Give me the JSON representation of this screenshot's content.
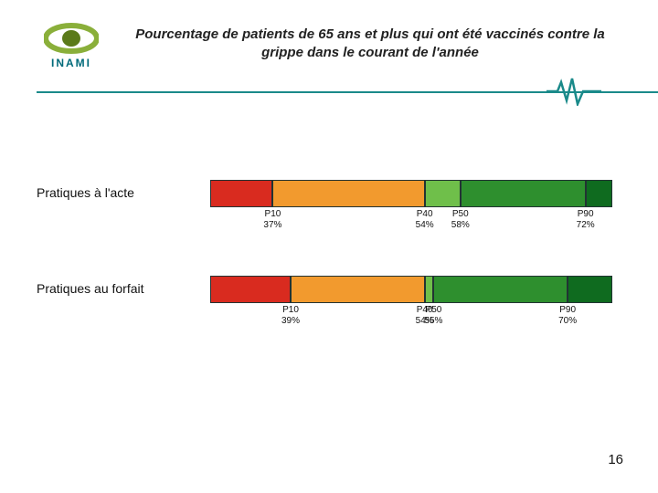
{
  "header": {
    "title": "Pourcentage de patients de 65 ans et plus qui ont été vaccinés contre la grippe dans le courant de l'année",
    "title_fontsize": 15,
    "logo_text": "INAMI",
    "logo_color_outer": "#8aaf3a",
    "logo_color_inner": "#5b7a1a",
    "logo_text_color": "#006a7a",
    "rule_color": "#1a8a8a"
  },
  "scale": {
    "min": 30,
    "max": 75
  },
  "segment_colors": {
    "red": "#d92b1f",
    "orange": "#f29a2e",
    "lightgreen": "#6fbf4a",
    "green": "#2e8f2e",
    "darkgreen": "#0f6b1f"
  },
  "rows": [
    {
      "label": "Pratiques à l'acte",
      "segments": [
        {
          "from": 30,
          "to": 37,
          "color": "red"
        },
        {
          "from": 37,
          "to": 54,
          "color": "orange"
        },
        {
          "from": 54,
          "to": 58,
          "color": "lightgreen"
        },
        {
          "from": 58,
          "to": 72,
          "color": "green"
        },
        {
          "from": 72,
          "to": 75,
          "color": "darkgreen"
        }
      ],
      "ticks": [
        {
          "p": "P10",
          "v": "37%",
          "at": 37
        },
        {
          "p": "P40",
          "v": "54%",
          "at": 54
        },
        {
          "p": "P50",
          "v": "58%",
          "at": 58
        },
        {
          "p": "P90",
          "v": "72%",
          "at": 72
        }
      ]
    },
    {
      "label": "Pratiques au forfait",
      "segments": [
        {
          "from": 30,
          "to": 39,
          "color": "red"
        },
        {
          "from": 39,
          "to": 54,
          "color": "orange"
        },
        {
          "from": 54,
          "to": 55,
          "color": "lightgreen"
        },
        {
          "from": 55,
          "to": 70,
          "color": "green"
        },
        {
          "from": 70,
          "to": 75,
          "color": "darkgreen"
        }
      ],
      "ticks": [
        {
          "p": "P10",
          "v": "39%",
          "at": 39
        },
        {
          "p": "P40",
          "v": "54%",
          "at": 54
        },
        {
          "p": "P50",
          "v": "55%",
          "at": 55
        },
        {
          "p": "P90",
          "v": "70%",
          "at": 70
        }
      ]
    }
  ],
  "page_number": "16"
}
